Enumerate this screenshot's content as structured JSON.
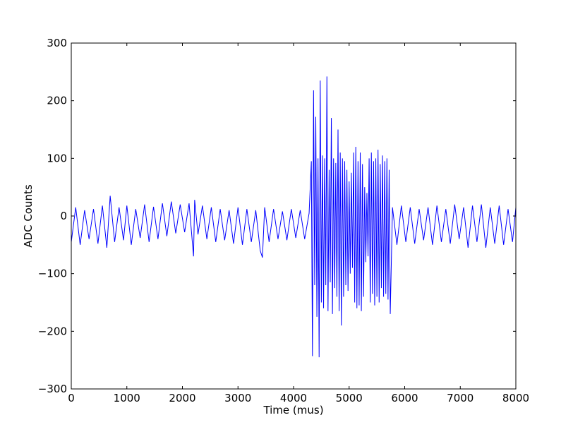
{
  "chart_data": {
    "type": "line",
    "title": "",
    "xlabel": "Time (mus)",
    "ylabel": "ADC Counts",
    "xlim": [
      0,
      8000
    ],
    "ylim": [
      -300,
      300
    ],
    "xticks": [
      0,
      1000,
      2000,
      3000,
      4000,
      5000,
      6000,
      7000,
      8000
    ],
    "yticks": [
      -300,
      -200,
      -100,
      0,
      100,
      200,
      300
    ],
    "grid": false,
    "legend": "none",
    "line_color": "#0000ff",
    "series": [
      {
        "x": [
          0,
          80,
          160,
          240,
          320,
          400,
          480,
          560,
          640,
          700,
          780,
          860,
          940,
          1000,
          1080,
          1160,
          1240,
          1320,
          1400,
          1480,
          1560,
          1640,
          1720,
          1800,
          1880,
          1960,
          2040,
          2120,
          2200,
          2220,
          2280,
          2360,
          2440,
          2520,
          2600,
          2680,
          2760,
          2840,
          2920,
          3000,
          3080,
          3160,
          3240,
          3320,
          3400,
          3440,
          3480,
          3560,
          3640,
          3720,
          3800,
          3880,
          3960,
          4040,
          4120,
          4200,
          4280,
          4320,
          4340,
          4360,
          4380,
          4400,
          4420,
          4440,
          4460,
          4480,
          4500,
          4520,
          4540,
          4560,
          4580,
          4600,
          4620,
          4640,
          4660,
          4680,
          4700,
          4720,
          4740,
          4760,
          4780,
          4800,
          4820,
          4840,
          4860,
          4880,
          4900,
          4920,
          4940,
          4960,
          4980,
          5000,
          5020,
          5040,
          5060,
          5080,
          5100,
          5120,
          5140,
          5160,
          5180,
          5200,
          5220,
          5240,
          5260,
          5280,
          5300,
          5320,
          5340,
          5360,
          5380,
          5400,
          5420,
          5440,
          5460,
          5480,
          5500,
          5520,
          5540,
          5560,
          5580,
          5600,
          5620,
          5640,
          5660,
          5680,
          5700,
          5720,
          5740,
          5780,
          5860,
          5940,
          6020,
          6100,
          6180,
          6260,
          6340,
          6420,
          6500,
          6580,
          6660,
          6740,
          6820,
          6900,
          6980,
          7060,
          7140,
          7220,
          7300,
          7380,
          7460,
          7540,
          7620,
          7700,
          7780,
          7860,
          7940,
          8000
        ],
        "values": [
          -45,
          15,
          -50,
          10,
          -40,
          12,
          -48,
          18,
          -55,
          35,
          -45,
          15,
          -42,
          18,
          -50,
          12,
          -38,
          20,
          -45,
          16,
          -40,
          22,
          -35,
          25,
          -30,
          20,
          -28,
          22,
          -70,
          28,
          -32,
          18,
          -40,
          15,
          -45,
          12,
          -42,
          10,
          -48,
          15,
          -50,
          12,
          -45,
          10,
          -60,
          -72,
          15,
          -45,
          12,
          -40,
          8,
          -42,
          12,
          -38,
          10,
          -40,
          5,
          95,
          -243,
          218,
          -120,
          172,
          -175,
          100,
          -245,
          235,
          -150,
          105,
          -160,
          100,
          -120,
          242,
          -165,
          80,
          -115,
          170,
          -170,
          100,
          -125,
          92,
          -140,
          150,
          -165,
          110,
          -190,
          100,
          -140,
          95,
          -120,
          80,
          -130,
          60,
          -100,
          75,
          -90,
          110,
          -150,
          120,
          -160,
          95,
          -155,
          110,
          -165,
          90,
          -140,
          50,
          -80,
          40,
          -70,
          100,
          -150,
          110,
          -135,
          95,
          -155,
          100,
          -140,
          115,
          -150,
          90,
          -125,
          105,
          -140,
          95,
          -135,
          100,
          -145,
          80,
          -170,
          15,
          -50,
          18,
          -45,
          15,
          -48,
          12,
          -42,
          15,
          -50,
          18,
          -45,
          12,
          -48,
          20,
          -40,
          15,
          -55,
          18,
          -45,
          20,
          -55,
          15,
          -48,
          18,
          -50,
          12,
          -45,
          15
        ]
      }
    ]
  }
}
